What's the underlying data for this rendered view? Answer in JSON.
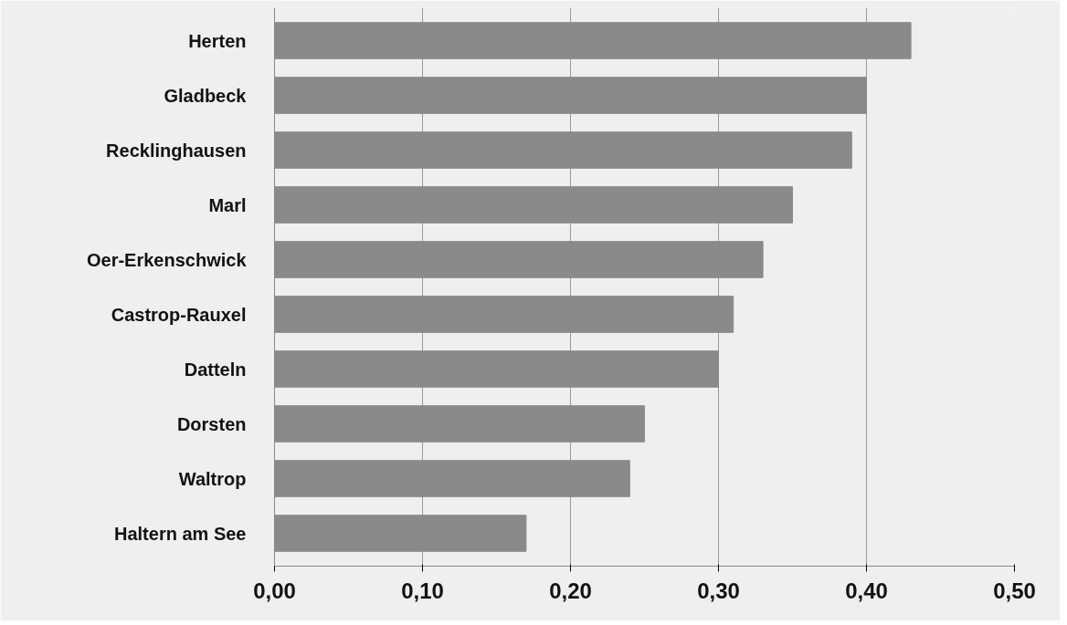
{
  "chart_data": {
    "type": "bar",
    "orientation": "horizontal",
    "categories": [
      "Herten",
      "Gladbeck",
      "Recklinghausen",
      "Marl",
      "Oer-Erkenschwick",
      "Castrop-Rauxel",
      "Datteln",
      "Dorsten",
      "Waltrop",
      "Haltern am See"
    ],
    "values": [
      0.43,
      0.4,
      0.39,
      0.35,
      0.33,
      0.31,
      0.3,
      0.25,
      0.24,
      0.17
    ],
    "color": "#8a8a8a",
    "xlim": [
      0,
      0.5
    ],
    "xticks": [
      {
        "value": 0,
        "label": "0,00"
      },
      {
        "value": 0.1,
        "label": "0,10"
      },
      {
        "value": 0.2,
        "label": "0,20"
      },
      {
        "value": 0.3,
        "label": "0,30"
      },
      {
        "value": 0.4,
        "label": "0,40"
      },
      {
        "value": 0.5,
        "label": "0,50"
      }
    ],
    "grid": "x"
  }
}
